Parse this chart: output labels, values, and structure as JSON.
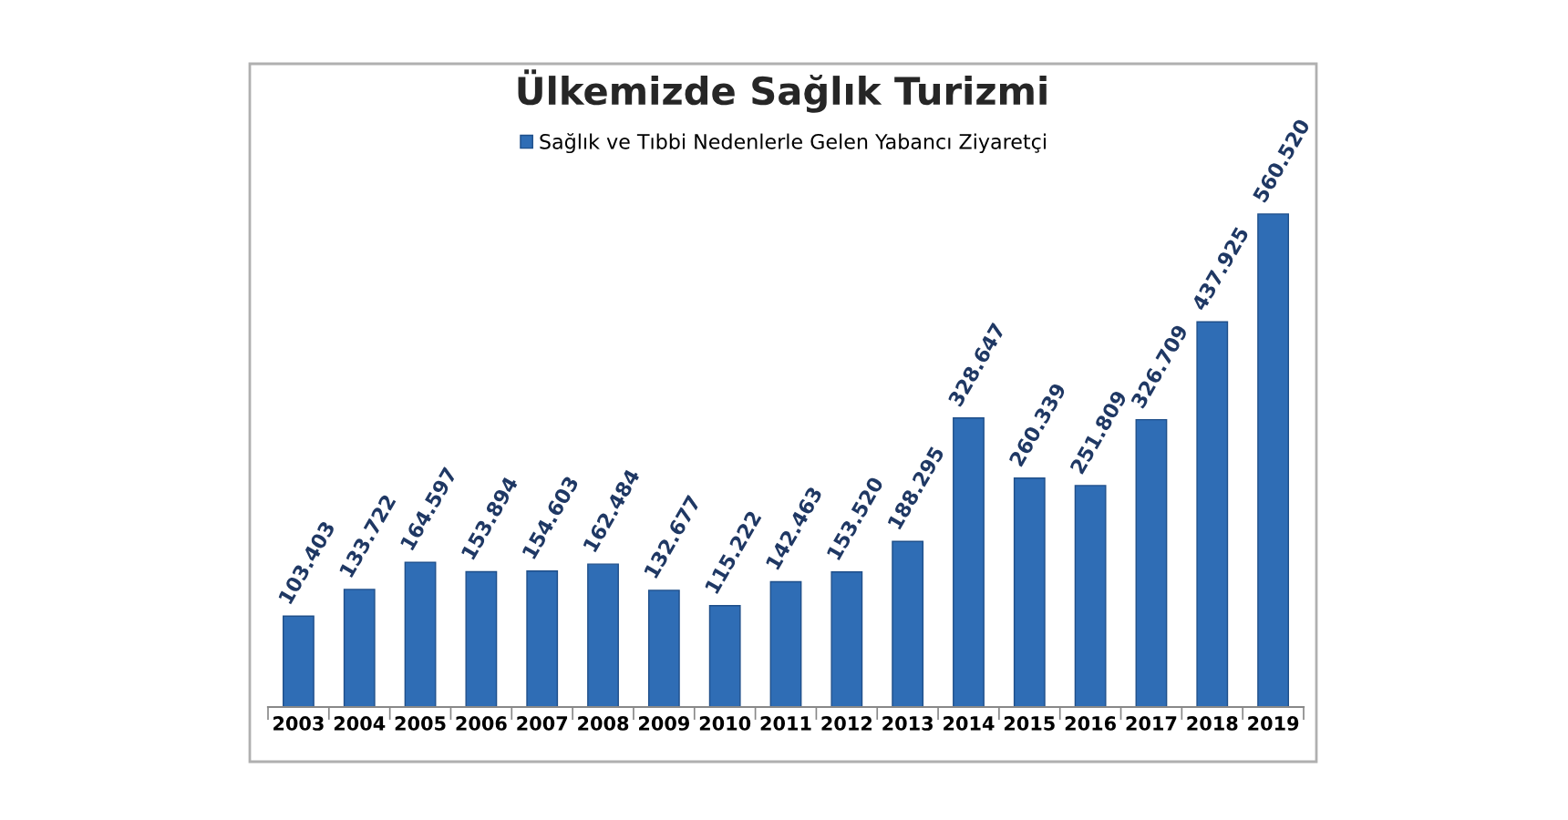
{
  "chart_data": {
    "type": "bar",
    "title": "Ülkemizde Sağlık Turizmi",
    "categories": [
      "2003",
      "2004",
      "2005",
      "2006",
      "2007",
      "2008",
      "2009",
      "2010",
      "2011",
      "2012",
      "2013",
      "2014",
      "2015",
      "2016",
      "2017",
      "2018",
      "2019"
    ],
    "series": [
      {
        "name": "Sağlık ve Tıbbi Nedenlerle Gelen Yabancı Ziyaretçi",
        "color": "#2f6db5",
        "values": [
          103403,
          133722,
          164597,
          153894,
          154603,
          162484,
          132677,
          115222,
          142463,
          153520,
          188295,
          328647,
          260339,
          251809,
          326709,
          437925,
          560520
        ],
        "value_labels": [
          "103.403",
          "133.722",
          "164.597",
          "153.894",
          "154.603",
          "162.484",
          "132.677",
          "115.222",
          "142.463",
          "153.520",
          "188.295",
          "328.647",
          "260.339",
          "251.809",
          "326.709",
          "437.925",
          "560.520"
        ]
      }
    ],
    "legend": "top",
    "grid": false
  }
}
